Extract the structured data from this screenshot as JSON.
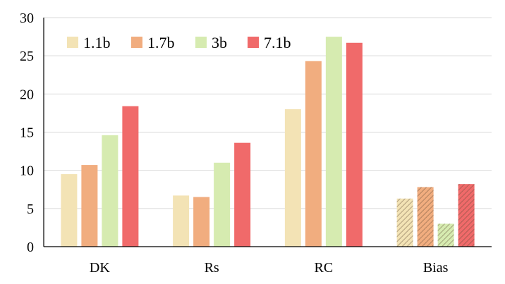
{
  "chart_data": {
    "type": "bar",
    "title": "",
    "xlabel": "",
    "ylabel": "",
    "categories": [
      "DK",
      "Rs",
      "RC",
      "Bias"
    ],
    "series": [
      {
        "name": "1.1b",
        "values": [
          9.5,
          6.7,
          18.0,
          6.3
        ],
        "color": "#f3e3b5"
      },
      {
        "name": "1.7b",
        "values": [
          10.7,
          6.5,
          24.3,
          7.8
        ],
        "color": "#f1ad7f"
      },
      {
        "name": "3b",
        "values": [
          14.6,
          11.0,
          27.5,
          3.0
        ],
        "color": "#d6ebb0"
      },
      {
        "name": "7.1b",
        "values": [
          18.4,
          13.6,
          26.7,
          8.2
        ],
        "color": "#f06a6a"
      }
    ],
    "hatched_category": "Bias",
    "ylim": [
      0,
      30
    ],
    "yticks": [
      0,
      5,
      10,
      15,
      20,
      25,
      30
    ],
    "grid": true,
    "legend_position": "top-left"
  }
}
